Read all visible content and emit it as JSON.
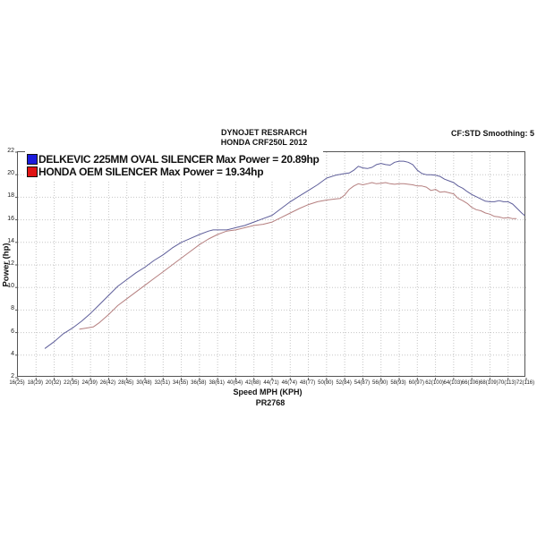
{
  "header": {
    "title_line1": "DYNOJET RESRARCH",
    "title_line2": "HONDA CRF250L 2012",
    "smoothing_label": "CF:STD Smoothing: 5"
  },
  "legend": {
    "items": [
      {
        "label": "DELKEVIC 225MM OVAL SILENCER Max Power = 20.89hp",
        "swatch_color": "#1c1cdd"
      },
      {
        "label": "HONDA OEM SILENCER Max Power = 19.34hp",
        "swatch_color": "#e01414"
      }
    ]
  },
  "footer": {
    "xlabel": "Speed MPH (KPH)",
    "run_id": "PR2768"
  },
  "chart_data": {
    "type": "line",
    "title": "DYNOJET RESRARCH",
    "subtitle": "HONDA CRF250L 2012",
    "xlabel": "Speed MPH (KPH)",
    "ylabel": "Power (hp)",
    "xlim": [
      16,
      72
    ],
    "ylim": [
      2,
      22
    ],
    "grid": true,
    "legend_position": "top-left",
    "smoothing": "CF:STD Smoothing: 5",
    "x_ticks": [
      16,
      18,
      20,
      22,
      24,
      26,
      28,
      30,
      32,
      34,
      36,
      38,
      40,
      42,
      44,
      46,
      48,
      50,
      52,
      54,
      56,
      58,
      60,
      62,
      64,
      66,
      68,
      70,
      72
    ],
    "x_tick_labels": [
      "16(25)",
      "18(29)",
      "20(32)",
      "22(35)",
      "24(39)",
      "26(42)",
      "28(45)",
      "30(48)",
      "32(51)",
      "34(55)",
      "36(58)",
      "38(61)",
      "40(64)",
      "42(68)",
      "44(71)",
      "46(74)",
      "48(77)",
      "50(80)",
      "52(84)",
      "54(87)",
      "56(90)",
      "58(93)",
      "60(97)",
      "62(100)",
      "64(103)",
      "66(106)",
      "68(109)",
      "70(113)",
      "72(116)"
    ],
    "y_ticks": [
      2,
      4,
      6,
      8,
      10,
      12,
      14,
      16,
      18,
      20,
      22
    ],
    "grid_color": "#c6c6c6",
    "series": [
      {
        "name": "DELKEVIC 225MM OVAL SILENCER",
        "max_power_hp": 20.89,
        "color": "#5e5e9a",
        "points": [
          [
            19,
            4.6
          ],
          [
            20,
            5.2
          ],
          [
            21,
            5.9
          ],
          [
            22,
            6.4
          ],
          [
            23,
            7.0
          ],
          [
            24,
            7.7
          ],
          [
            25,
            8.5
          ],
          [
            26,
            9.3
          ],
          [
            27,
            10.1
          ],
          [
            28,
            10.7
          ],
          [
            29,
            11.3
          ],
          [
            30,
            11.8
          ],
          [
            31,
            12.4
          ],
          [
            32,
            12.9
          ],
          [
            33,
            13.5
          ],
          [
            34,
            14.0
          ],
          [
            35,
            14.35
          ],
          [
            36,
            14.7
          ],
          [
            37,
            15.0
          ],
          [
            37.5,
            15.1
          ],
          [
            38.5,
            15.1
          ],
          [
            39,
            15.1
          ],
          [
            40,
            15.3
          ],
          [
            41,
            15.5
          ],
          [
            42,
            15.8
          ],
          [
            43,
            16.1
          ],
          [
            44,
            16.4
          ],
          [
            45,
            17.0
          ],
          [
            46,
            17.6
          ],
          [
            47,
            18.1
          ],
          [
            48,
            18.6
          ],
          [
            49,
            19.1
          ],
          [
            50,
            19.7
          ],
          [
            51,
            19.95
          ],
          [
            52,
            20.1
          ],
          [
            52.5,
            20.15
          ],
          [
            53,
            20.4
          ],
          [
            53.5,
            20.75
          ],
          [
            54,
            20.6
          ],
          [
            54.5,
            20.55
          ],
          [
            55,
            20.65
          ],
          [
            55.5,
            20.9
          ],
          [
            56,
            21.0
          ],
          [
            56.5,
            20.9
          ],
          [
            57,
            20.85
          ],
          [
            57.5,
            21.1
          ],
          [
            58,
            21.2
          ],
          [
            58.5,
            21.2
          ],
          [
            59,
            21.1
          ],
          [
            59.5,
            20.9
          ],
          [
            60,
            20.4
          ],
          [
            60.5,
            20.1
          ],
          [
            61,
            20.0
          ],
          [
            61.5,
            20.0
          ],
          [
            62,
            19.95
          ],
          [
            62.5,
            19.85
          ],
          [
            63,
            19.6
          ],
          [
            63.5,
            19.45
          ],
          [
            64,
            19.3
          ],
          [
            64.5,
            19.0
          ],
          [
            65,
            18.8
          ],
          [
            65.5,
            18.5
          ],
          [
            66,
            18.25
          ],
          [
            66.5,
            18.05
          ],
          [
            67,
            17.85
          ],
          [
            67.5,
            17.65
          ],
          [
            68,
            17.6
          ],
          [
            68.5,
            17.6
          ],
          [
            69,
            17.7
          ],
          [
            69.5,
            17.6
          ],
          [
            70,
            17.6
          ],
          [
            70.5,
            17.4
          ],
          [
            71,
            17.0
          ],
          [
            71.5,
            16.6
          ],
          [
            71.8,
            16.4
          ]
        ]
      },
      {
        "name": "HONDA OEM SILENCER",
        "max_power_hp": 19.34,
        "color": "#b57f7f",
        "points": [
          [
            22.8,
            6.3
          ],
          [
            23.5,
            6.4
          ],
          [
            24.3,
            6.5
          ],
          [
            25,
            6.9
          ],
          [
            26,
            7.6
          ],
          [
            27,
            8.4
          ],
          [
            28,
            9.0
          ],
          [
            29,
            9.6
          ],
          [
            30,
            10.2
          ],
          [
            31,
            10.8
          ],
          [
            32,
            11.4
          ],
          [
            33,
            12.0
          ],
          [
            34,
            12.6
          ],
          [
            35,
            13.2
          ],
          [
            36,
            13.8
          ],
          [
            37,
            14.3
          ],
          [
            38,
            14.7
          ],
          [
            39,
            15.0
          ],
          [
            40,
            15.1
          ],
          [
            41,
            15.3
          ],
          [
            42,
            15.5
          ],
          [
            43,
            15.6
          ],
          [
            44,
            15.8
          ],
          [
            45,
            16.2
          ],
          [
            46,
            16.6
          ],
          [
            47,
            17.0
          ],
          [
            48,
            17.35
          ],
          [
            49,
            17.6
          ],
          [
            50,
            17.75
          ],
          [
            51,
            17.85
          ],
          [
            51.5,
            17.9
          ],
          [
            52,
            18.2
          ],
          [
            52.5,
            18.7
          ],
          [
            53,
            19.0
          ],
          [
            53.5,
            19.2
          ],
          [
            54,
            19.1
          ],
          [
            54.5,
            19.2
          ],
          [
            55,
            19.3
          ],
          [
            55.5,
            19.2
          ],
          [
            56,
            19.25
          ],
          [
            56.5,
            19.3
          ],
          [
            57,
            19.2
          ],
          [
            57.5,
            19.15
          ],
          [
            58,
            19.2
          ],
          [
            58.5,
            19.2
          ],
          [
            59,
            19.15
          ],
          [
            59.5,
            19.1
          ],
          [
            60,
            19.0
          ],
          [
            60.5,
            19.0
          ],
          [
            61,
            18.9
          ],
          [
            61.5,
            18.6
          ],
          [
            62,
            18.7
          ],
          [
            62.5,
            18.45
          ],
          [
            63,
            18.5
          ],
          [
            63.5,
            18.4
          ],
          [
            64,
            18.3
          ],
          [
            64.5,
            17.9
          ],
          [
            65,
            17.7
          ],
          [
            65.5,
            17.45
          ],
          [
            66,
            17.1
          ],
          [
            66.5,
            16.9
          ],
          [
            67,
            16.8
          ],
          [
            67.5,
            16.6
          ],
          [
            68,
            16.5
          ],
          [
            68.5,
            16.3
          ],
          [
            69,
            16.25
          ],
          [
            69.5,
            16.15
          ],
          [
            70,
            16.2
          ],
          [
            70.5,
            16.1
          ],
          [
            70.9,
            16.1
          ]
        ]
      }
    ]
  }
}
